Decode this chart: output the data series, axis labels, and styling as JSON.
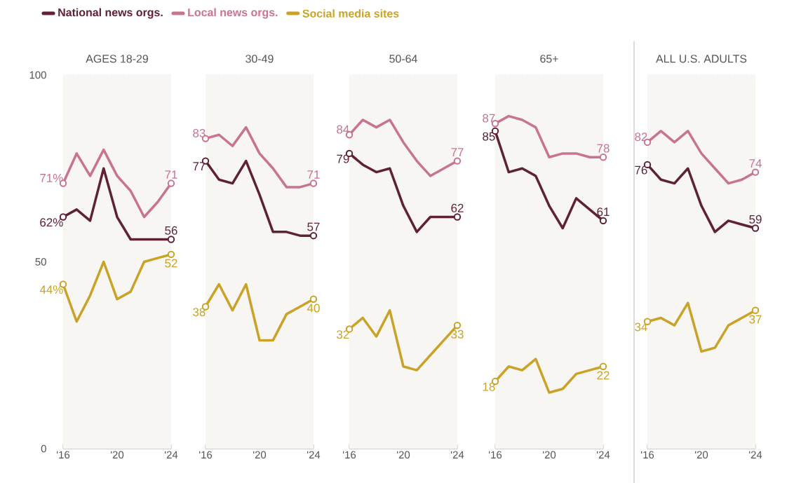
{
  "chart_data": [
    {
      "type": "line",
      "title": "AGES 18-29",
      "x": [
        2016,
        2017,
        2018,
        2019,
        2020,
        2021,
        2022,
        2023,
        2024
      ],
      "xlim": [
        2016,
        2024
      ],
      "ylim": [
        0,
        100
      ],
      "xticks": [
        {
          "value": 2016,
          "label": "'16"
        },
        {
          "value": 2017,
          "label": null
        },
        {
          "value": 2018,
          "label": null
        },
        {
          "value": 2019,
          "label": null
        },
        {
          "value": 2020,
          "label": "'20"
        },
        {
          "value": 2021,
          "label": null
        },
        {
          "value": 2022,
          "label": null
        },
        {
          "value": 2023,
          "label": null
        },
        {
          "value": 2024,
          "label": "'24"
        }
      ],
      "yticks": [
        0,
        50,
        100
      ],
      "grid": "y",
      "legend": "top",
      "series": [
        {
          "name": "National news orgs.",
          "color": "#5e2136",
          "values": [
            62,
            64,
            61,
            75,
            62,
            56,
            56,
            56,
            56
          ],
          "value_labels": [
            "62%",
            null,
            null,
            null,
            null,
            null,
            null,
            null,
            "56"
          ]
        },
        {
          "name": "Local news orgs.",
          "color": "#c8738f",
          "values": [
            71,
            79,
            73,
            80,
            73,
            69,
            62,
            66,
            71
          ],
          "value_labels": [
            "71%",
            null,
            null,
            null,
            null,
            null,
            null,
            null,
            "71"
          ]
        },
        {
          "name": "Social media sites",
          "color": "#c9a227",
          "values": [
            44,
            34,
            41,
            50,
            40,
            42,
            50,
            51,
            52
          ],
          "value_labels": [
            "44%",
            null,
            null,
            null,
            null,
            null,
            null,
            null,
            "52"
          ]
        }
      ]
    },
    {
      "type": "line",
      "title": "30-49",
      "x": [
        2016,
        2017,
        2018,
        2019,
        2020,
        2021,
        2022,
        2023,
        2024
      ],
      "xlim": [
        2016,
        2024
      ],
      "ylim": [
        0,
        100
      ],
      "xticks": [
        {
          "value": 2016,
          "label": "'16"
        },
        {
          "value": 2017,
          "label": null
        },
        {
          "value": 2018,
          "label": null
        },
        {
          "value": 2019,
          "label": null
        },
        {
          "value": 2020,
          "label": "'20"
        },
        {
          "value": 2021,
          "label": null
        },
        {
          "value": 2022,
          "label": null
        },
        {
          "value": 2023,
          "label": null
        },
        {
          "value": 2024,
          "label": "'24"
        }
      ],
      "yticks": [
        0,
        50,
        100
      ],
      "tick_labels": "x",
      "grid": "y",
      "series": [
        {
          "color": "#5e2136",
          "values": [
            77,
            72,
            71,
            77,
            68,
            58,
            58,
            57,
            57
          ],
          "value_labels": [
            "77",
            null,
            null,
            null,
            null,
            null,
            null,
            null,
            "57"
          ]
        },
        {
          "color": "#c8738f",
          "values": [
            83,
            84,
            81,
            86,
            79,
            75,
            70,
            70,
            71
          ],
          "value_labels": [
            "83",
            null,
            null,
            null,
            null,
            null,
            null,
            null,
            "71"
          ]
        },
        {
          "color": "#c9a227",
          "values": [
            38,
            44,
            37,
            44,
            29,
            29,
            36,
            38,
            40
          ],
          "value_labels": [
            "38",
            null,
            null,
            null,
            null,
            null,
            null,
            null,
            "40"
          ]
        }
      ]
    },
    {
      "type": "line",
      "title": "50-64",
      "x": [
        2016,
        2017,
        2018,
        2019,
        2020,
        2021,
        2022,
        2023,
        2024
      ],
      "xlim": [
        2016,
        2024
      ],
      "ylim": [
        0,
        100
      ],
      "xticks": [
        {
          "value": 2016,
          "label": "'16"
        },
        {
          "value": 2017,
          "label": null
        },
        {
          "value": 2018,
          "label": null
        },
        {
          "value": 2019,
          "label": null
        },
        {
          "value": 2020,
          "label": "'20"
        },
        {
          "value": 2021,
          "label": null
        },
        {
          "value": 2022,
          "label": null
        },
        {
          "value": 2023,
          "label": null
        },
        {
          "value": 2024,
          "label": "'24"
        }
      ],
      "yticks": [
        0,
        50,
        100
      ],
      "tick_labels": "x",
      "grid": "y",
      "series": [
        {
          "color": "#5e2136",
          "values": [
            79,
            76,
            74,
            75,
            65,
            58,
            62,
            62,
            62
          ],
          "value_labels": [
            "79",
            null,
            null,
            null,
            null,
            null,
            null,
            null,
            "62"
          ]
        },
        {
          "color": "#c8738f",
          "values": [
            84,
            88,
            86,
            88,
            82,
            77,
            73,
            75,
            77
          ],
          "value_labels": [
            "84",
            null,
            null,
            null,
            null,
            null,
            null,
            null,
            "77"
          ]
        },
        {
          "color": "#c9a227",
          "values": [
            32,
            35,
            30,
            37,
            22,
            21,
            25,
            29,
            33
          ],
          "value_labels": [
            "32",
            null,
            null,
            null,
            null,
            null,
            null,
            null,
            "33"
          ]
        }
      ]
    },
    {
      "type": "line",
      "title": "65+",
      "x": [
        2016,
        2017,
        2018,
        2019,
        2020,
        2021,
        2022,
        2023,
        2024
      ],
      "xlim": [
        2016,
        2024
      ],
      "ylim": [
        0,
        100
      ],
      "xticks": [
        {
          "value": 2016,
          "label": "'16"
        },
        {
          "value": 2017,
          "label": null
        },
        {
          "value": 2018,
          "label": null
        },
        {
          "value": 2019,
          "label": null
        },
        {
          "value": 2020,
          "label": "'20"
        },
        {
          "value": 2021,
          "label": null
        },
        {
          "value": 2022,
          "label": null
        },
        {
          "value": 2023,
          "label": null
        },
        {
          "value": 2024,
          "label": "'24"
        }
      ],
      "yticks": [
        0,
        50,
        100
      ],
      "tick_labels": "x",
      "grid": "y",
      "series": [
        {
          "color": "#5e2136",
          "values": [
            85,
            74,
            75,
            73,
            65,
            59,
            67,
            64,
            61
          ],
          "value_labels": [
            "85",
            null,
            null,
            null,
            null,
            null,
            null,
            null,
            "61"
          ]
        },
        {
          "color": "#c8738f",
          "values": [
            87,
            89,
            88,
            86,
            78,
            79,
            79,
            78,
            78
          ],
          "value_labels": [
            "87",
            null,
            null,
            null,
            null,
            null,
            null,
            null,
            "78"
          ]
        },
        {
          "color": "#c9a227",
          "values": [
            18,
            22,
            21,
            24,
            15,
            16,
            20,
            21,
            22
          ],
          "value_labels": [
            "18",
            null,
            null,
            null,
            null,
            null,
            null,
            null,
            "22"
          ]
        }
      ]
    },
    {
      "type": "line",
      "title": "ALL U.S. ADULTS",
      "x": [
        2016,
        2017,
        2018,
        2019,
        2020,
        2021,
        2022,
        2023,
        2024
      ],
      "xlim": [
        2016,
        2024
      ],
      "ylim": [
        0,
        100
      ],
      "xticks": [
        {
          "value": 2016,
          "label": "'16"
        },
        {
          "value": 2017,
          "label": null
        },
        {
          "value": 2018,
          "label": null
        },
        {
          "value": 2019,
          "label": null
        },
        {
          "value": 2020,
          "label": "'20"
        },
        {
          "value": 2021,
          "label": null
        },
        {
          "value": 2022,
          "label": null
        },
        {
          "value": 2023,
          "label": null
        },
        {
          "value": 2024,
          "label": "'24"
        }
      ],
      "yticks": [
        0,
        50,
        100
      ],
      "tick_labels": "x",
      "grid": "y",
      "series": [
        {
          "color": "#5e2136",
          "values": [
            76,
            72,
            71,
            75,
            65,
            58,
            61,
            60,
            59
          ],
          "value_labels": [
            "76",
            null,
            null,
            null,
            null,
            null,
            null,
            null,
            "59"
          ]
        },
        {
          "color": "#c8738f",
          "values": [
            82,
            85,
            82,
            85,
            79,
            75,
            71,
            72,
            74
          ],
          "value_labels": [
            "82",
            null,
            null,
            null,
            null,
            null,
            null,
            null,
            "74"
          ]
        },
        {
          "color": "#c9a227",
          "values": [
            34,
            35,
            33,
            39,
            26,
            27,
            33,
            35,
            37
          ],
          "value_labels": [
            "34",
            null,
            null,
            null,
            null,
            null,
            null,
            null,
            "37"
          ]
        }
      ]
    }
  ]
}
